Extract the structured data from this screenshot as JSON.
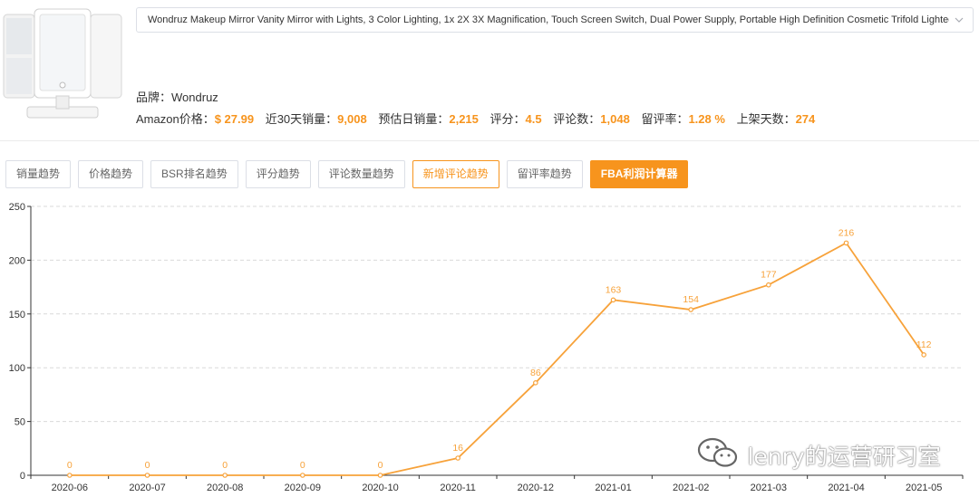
{
  "product": {
    "title": "Wondruz Makeup Mirror Vanity Mirror with Lights, 3 Color Lighting, 1x 2X 3X Magnification, Touch Screen Switch, Dual Power Supply, Portable High Definition Cosmetic Trifold Lighted Ma",
    "brand_label": "品牌：",
    "brand": "Wondruz",
    "stats": [
      {
        "label": "Amazon价格：",
        "value": "$ 27.99"
      },
      {
        "label": "近30天销量：",
        "value": "9,008"
      },
      {
        "label": "预估日销量：",
        "value": "2,215"
      },
      {
        "label": "评分：",
        "value": "4.5"
      },
      {
        "label": "评论数：",
        "value": "1,048"
      },
      {
        "label": "留评率：",
        "value": "1.28 %"
      },
      {
        "label": "上架天数：",
        "value": "274"
      }
    ]
  },
  "tabs": [
    {
      "label": "销量趋势"
    },
    {
      "label": "价格趋势"
    },
    {
      "label": "BSR排名趋势"
    },
    {
      "label": "评分趋势"
    },
    {
      "label": "评论数量趋势"
    },
    {
      "label": "新增评论趋势"
    },
    {
      "label": "留评率趋势"
    },
    {
      "label": "FBA利润计算器"
    }
  ],
  "active_tab": 5,
  "colors": {
    "accent": "#f7941d",
    "line": "#f7a23a",
    "grid": "#d9d9d9",
    "axis": "#333333"
  },
  "chart_data": {
    "type": "line",
    "categories": [
      "2020-06",
      "2020-07",
      "2020-08",
      "2020-09",
      "2020-10",
      "2020-11",
      "2020-12",
      "2021-01",
      "2021-02",
      "2021-03",
      "2021-04",
      "2021-05"
    ],
    "values": [
      0,
      0,
      0,
      0,
      0,
      16,
      86,
      163,
      154,
      177,
      216,
      112
    ],
    "ylim": [
      0,
      250
    ],
    "yticks": [
      0,
      50,
      100,
      150,
      200,
      250
    ],
    "grid": true,
    "data_labels": true
  },
  "watermark": {
    "icon": "wechat-icon",
    "text": "lenry的运营研习室"
  }
}
